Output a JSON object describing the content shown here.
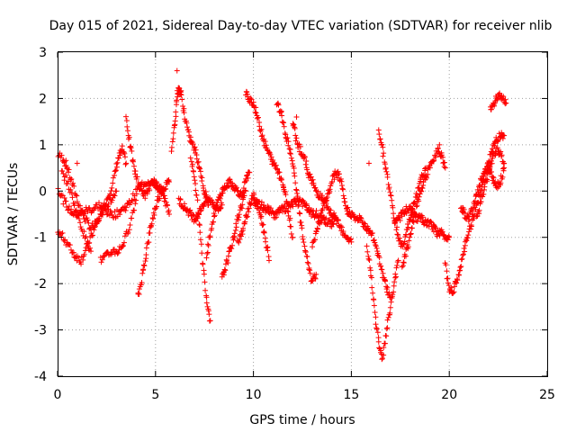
{
  "chart_data": {
    "type": "scatter",
    "title": "Day 015 of 2021, Sidereal Day-to-day VTEC variation (SDTVAR) for receiver nlib",
    "xlabel": "GPS time / hours",
    "ylabel": "SDTVAR / TECUs",
    "xlim": [
      0,
      25
    ],
    "ylim": [
      -4,
      3
    ],
    "xticks": [
      0,
      5,
      10,
      15,
      20,
      25
    ],
    "yticks": [
      -4,
      -3,
      -2,
      -1,
      0,
      1,
      2,
      3
    ],
    "marker": "+",
    "grid": true,
    "series": [
      {
        "name": "SDTVAR",
        "color": "#ff0000",
        "tracks": [
          {
            "x": [
              0.0,
              0.3,
              0.5,
              0.8,
              1.1,
              1.4,
              1.7,
              2.0,
              2.3,
              2.6,
              2.9,
              3.1,
              3.3,
              3.5
            ],
            "y": [
              0.8,
              0.7,
              0.5,
              0.1,
              -0.3,
              -0.6,
              -0.8,
              -0.7,
              -0.4,
              -0.1,
              0.3,
              0.7,
              0.9,
              0.6
            ]
          },
          {
            "x": [
              0.0,
              0.3,
              0.6,
              0.9,
              1.2,
              1.5,
              1.8,
              2.1,
              2.4,
              2.7,
              3.0
            ],
            "y": [
              -0.9,
              -1.0,
              -1.2,
              -1.4,
              -1.5,
              -1.2,
              -0.9,
              -0.6,
              -0.4,
              -0.2,
              0.0
            ]
          },
          {
            "x": [
              0.0,
              0.3,
              0.6,
              0.9,
              1.2,
              1.5,
              1.8,
              2.1,
              2.4,
              2.7,
              3.0,
              3.3,
              3.6,
              3.9,
              4.2,
              4.5,
              4.8,
              5.1,
              5.4
            ],
            "y": [
              0.1,
              -0.2,
              -0.4,
              -0.5,
              -0.5,
              -0.4,
              -0.4,
              -0.3,
              -0.4,
              -0.5,
              -0.5,
              -0.4,
              -0.3,
              -0.1,
              0.1,
              0.2,
              0.2,
              0.1,
              0.0
            ]
          },
          {
            "x": [
              0.2,
              0.5,
              0.8,
              1.1,
              1.4,
              1.7
            ],
            "y": [
              0.4,
              0.2,
              -0.2,
              -0.6,
              -1.0,
              -1.3
            ]
          },
          {
            "x": [
              2.2,
              2.5,
              2.8,
              3.1,
              3.4,
              3.7,
              4.0
            ],
            "y": [
              -1.5,
              -1.4,
              -1.3,
              -1.3,
              -1.1,
              -0.7,
              -0.2
            ]
          },
          {
            "x": [
              3.5,
              3.7,
              3.9,
              4.1,
              4.3,
              4.5,
              4.7,
              4.9,
              5.1,
              5.3,
              5.5,
              5.7
            ],
            "y": [
              1.6,
              1.0,
              0.5,
              0.2,
              0.0,
              -0.1,
              0.1,
              0.2,
              0.1,
              0.0,
              -0.2,
              -0.5
            ]
          },
          {
            "x": [
              4.1,
              4.3,
              4.5,
              4.7,
              4.9,
              5.1,
              5.3,
              5.5,
              5.7
            ],
            "y": [
              -2.3,
              -1.9,
              -1.4,
              -0.9,
              -0.5,
              -0.2,
              0.0,
              0.1,
              0.2
            ]
          },
          {
            "x": [
              5.8,
              6.0,
              6.1,
              6.2,
              6.3,
              6.5,
              6.7,
              6.9,
              7.1,
              7.3,
              7.5,
              7.7
            ],
            "y": [
              0.9,
              1.5,
              2.1,
              2.2,
              2.1,
              1.6,
              1.2,
              1.0,
              0.8,
              0.4,
              0.0,
              -0.3
            ]
          },
          {
            "x": [
              6.2,
              6.4,
              6.6,
              6.8,
              7.0,
              7.2,
              7.4,
              7.6,
              7.8,
              8.0,
              8.2,
              8.4
            ],
            "y": [
              -0.2,
              -0.3,
              -0.4,
              -0.5,
              -0.6,
              -0.5,
              -0.3,
              -0.2,
              -0.2,
              -0.3,
              -0.4,
              -0.3
            ]
          },
          {
            "x": [
              6.8,
              7.0,
              7.2,
              7.4,
              7.6,
              7.8
            ],
            "y": [
              0.7,
              0.3,
              -0.5,
              -1.5,
              -2.3,
              -2.8
            ]
          },
          {
            "x": [
              7.6,
              7.8,
              8.0,
              8.2,
              8.4,
              8.6,
              8.8,
              9.0,
              9.2,
              9.4,
              9.6,
              9.8
            ],
            "y": [
              -1.4,
              -0.9,
              -0.5,
              -0.2,
              0.0,
              0.1,
              0.2,
              0.1,
              0.0,
              -0.1,
              0.2,
              0.4
            ]
          },
          {
            "x": [
              8.4,
              8.6,
              8.8,
              9.0,
              9.2,
              9.4,
              9.6
            ],
            "y": [
              -1.9,
              -1.6,
              -1.3,
              -1.0,
              -0.6,
              -0.3,
              0.0
            ]
          },
          {
            "x": [
              9.6,
              9.8,
              10.0,
              10.2,
              10.4,
              10.6,
              10.8,
              11.0,
              11.2,
              11.4,
              11.6,
              11.8,
              12.0
            ],
            "y": [
              2.1,
              2.0,
              1.9,
              1.6,
              1.3,
              1.0,
              0.8,
              0.6,
              0.5,
              0.3,
              0.0,
              -0.5,
              -1.0
            ]
          },
          {
            "x": [
              9.2,
              9.4,
              9.6,
              9.8,
              10.0,
              10.2,
              10.4,
              10.6,
              10.8
            ],
            "y": [
              -1.1,
              -0.9,
              -0.6,
              -0.3,
              -0.1,
              -0.3,
              -0.6,
              -1.0,
              -1.5
            ]
          },
          {
            "x": [
              10.0,
              10.2,
              10.4,
              10.6,
              10.8,
              11.0,
              11.2,
              11.4,
              11.6,
              11.8,
              12.0,
              12.2,
              12.4,
              12.6,
              12.8,
              13.0,
              13.2,
              13.4,
              13.6,
              13.8,
              14.0,
              14.2
            ],
            "y": [
              -0.2,
              -0.3,
              -0.3,
              -0.4,
              -0.4,
              -0.5,
              -0.5,
              -0.4,
              -0.4,
              -0.3,
              -0.3,
              -0.2,
              -0.2,
              -0.3,
              -0.4,
              -0.5,
              -0.5,
              -0.6,
              -0.6,
              -0.7,
              -0.7,
              -0.6
            ]
          },
          {
            "x": [
              11.2,
              11.4,
              11.6,
              11.8,
              12.0,
              12.2,
              12.4,
              12.6,
              12.8,
              13.0,
              13.2
            ],
            "y": [
              1.9,
              1.7,
              1.3,
              1.0,
              0.6,
              0.0,
              -0.6,
              -1.2,
              -1.6,
              -2.0,
              -1.8
            ]
          },
          {
            "x": [
              12.0,
              12.2,
              12.4,
              12.6,
              12.8,
              13.0,
              13.2,
              13.4,
              13.6,
              13.8,
              14.0,
              14.2,
              14.4,
              14.6,
              14.8,
              15.0
            ],
            "y": [
              1.5,
              1.1,
              0.9,
              0.7,
              0.4,
              0.2,
              0.0,
              -0.1,
              -0.2,
              -0.4,
              -0.5,
              -0.6,
              -0.7,
              -0.9,
              -1.0,
              -1.1
            ]
          },
          {
            "x": [
              13.0,
              13.2,
              13.4,
              13.6,
              13.8,
              14.0,
              14.2,
              14.4,
              14.6,
              14.8
            ],
            "y": [
              -1.2,
              -0.9,
              -0.6,
              -0.3,
              -0.1,
              0.2,
              0.4,
              0.3,
              -0.1,
              -0.5
            ]
          },
          {
            "x": [
              14.8,
              15.0,
              15.2,
              15.4,
              15.6,
              15.8,
              16.0,
              16.2,
              16.4,
              16.6,
              16.8,
              17.0
            ],
            "y": [
              -0.4,
              -0.5,
              -0.6,
              -0.6,
              -0.7,
              -0.8,
              -0.9,
              -1.1,
              -1.4,
              -1.8,
              -2.1,
              -2.3
            ]
          },
          {
            "x": [
              15.8,
              16.0,
              16.2,
              16.4,
              16.6,
              16.8,
              17.0,
              17.2,
              17.4
            ],
            "y": [
              -1.2,
              -1.8,
              -2.6,
              -3.3,
              -3.6,
              -3.0,
              -2.5,
              -2.0,
              -1.5
            ]
          },
          {
            "x": [
              16.4,
              16.6,
              16.8,
              17.0,
              17.2,
              17.4,
              17.6,
              17.8,
              18.0,
              18.2,
              18.4,
              18.6,
              18.8
            ],
            "y": [
              1.3,
              0.9,
              0.4,
              -0.1,
              -0.6,
              -1.0,
              -1.2,
              -0.9,
              -0.6,
              -0.3,
              0.0,
              0.3,
              0.5
            ]
          },
          {
            "x": [
              17.2,
              17.4,
              17.6,
              17.8,
              18.0,
              18.2,
              18.4,
              18.6,
              18.8,
              19.0,
              19.2,
              19.4,
              19.6,
              19.8,
              20.0
            ],
            "y": [
              -0.7,
              -0.6,
              -0.5,
              -0.4,
              -0.4,
              -0.5,
              -0.6,
              -0.6,
              -0.7,
              -0.7,
              -0.8,
              -0.9,
              -0.9,
              -1.0,
              -1.0
            ]
          },
          {
            "x": [
              17.6,
              17.8,
              18.0,
              18.2,
              18.4,
              18.6,
              18.8,
              19.0,
              19.2,
              19.4,
              19.6,
              19.8
            ],
            "y": [
              -1.6,
              -1.3,
              -1.0,
              -0.6,
              -0.2,
              0.1,
              0.3,
              0.5,
              0.7,
              0.9,
              0.8,
              0.5
            ]
          },
          {
            "x": [
              19.8,
              20.0,
              20.2,
              20.4,
              20.6,
              20.8,
              21.0,
              21.2,
              21.4,
              21.6,
              21.8,
              22.0,
              22.2,
              22.4,
              22.6,
              22.8
            ],
            "y": [
              -1.6,
              -2.1,
              -2.2,
              -1.9,
              -1.6,
              -1.2,
              -0.9,
              -0.6,
              -0.3,
              0.0,
              0.3,
              0.6,
              0.9,
              1.1,
              1.2,
              1.2
            ]
          },
          {
            "x": [
              20.6,
              20.8,
              21.0,
              21.2,
              21.4,
              21.6,
              21.8,
              22.0,
              22.2,
              22.4,
              22.6,
              22.8
            ],
            "y": [
              -0.3,
              -0.5,
              -0.6,
              -0.4,
              -0.1,
              0.2,
              0.4,
              0.5,
              0.3,
              0.1,
              0.2,
              0.5
            ]
          },
          {
            "x": [
              21.4,
              21.6,
              21.8,
              22.0,
              22.2,
              22.4,
              22.6,
              22.8
            ],
            "y": [
              -0.6,
              -0.3,
              0.1,
              0.4,
              0.7,
              0.9,
              0.8,
              0.6
            ]
          },
          {
            "x": [
              22.1,
              22.3,
              22.5,
              22.7,
              22.9
            ],
            "y": [
              1.8,
              1.9,
              2.1,
              2.0,
              1.9
            ]
          }
        ],
        "points": [
          {
            "x": 6.1,
            "y": 2.6
          },
          {
            "x": 12.2,
            "y": 1.6
          },
          {
            "x": 15.9,
            "y": 0.6
          },
          {
            "x": 1.0,
            "y": 0.6
          },
          {
            "x": 19.5,
            "y": 1.0
          }
        ]
      }
    ]
  }
}
